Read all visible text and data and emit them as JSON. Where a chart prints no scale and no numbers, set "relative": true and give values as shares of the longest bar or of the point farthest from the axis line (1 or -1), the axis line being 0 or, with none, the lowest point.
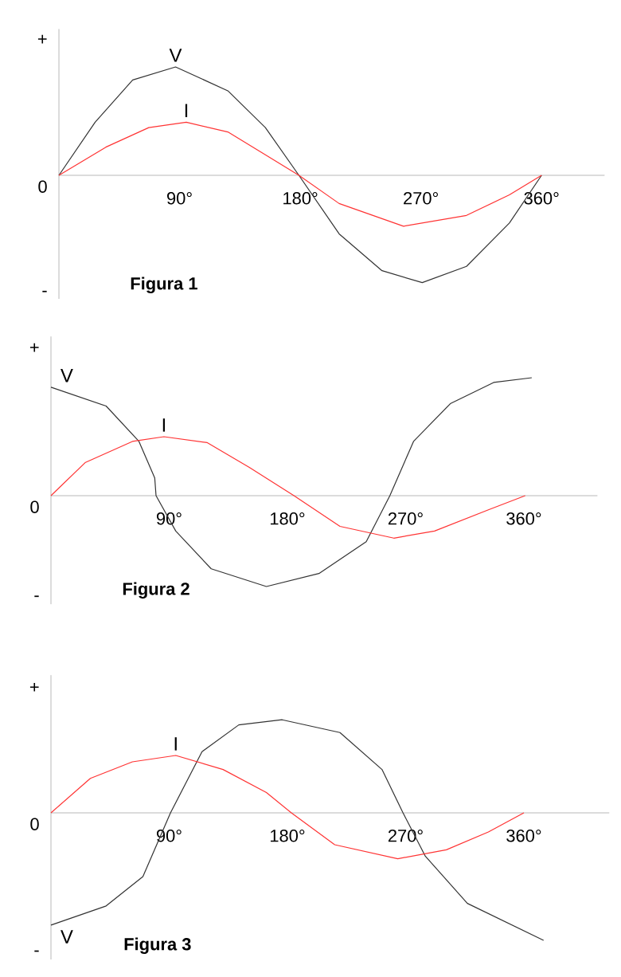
{
  "chart_data": [
    {
      "type": "line",
      "title": "Figura 1",
      "relative": true,
      "xlim": [
        0,
        407
      ],
      "xticks": [
        {
          "value": 90,
          "label": "90°"
        },
        {
          "value": 180,
          "label": "180°"
        },
        {
          "value": 270,
          "label": "270°"
        },
        {
          "value": 360,
          "label": "360°"
        }
      ],
      "annotations": [
        "+",
        "0",
        "-"
      ],
      "marker": "none",
      "series": [
        {
          "name": "V",
          "color": "#333333",
          "x": [
            0,
            27,
            55,
            87,
            126,
            154,
            179,
            209,
            241,
            271,
            304,
            336,
            360
          ],
          "values": [
            0,
            0.49,
            0.88,
            1.0,
            0.78,
            0.44,
            0,
            -0.54,
            -0.88,
            -0.99,
            -0.84,
            -0.44,
            0
          ]
        },
        {
          "name": "I",
          "color": "#ff3333",
          "x": [
            0,
            35,
            67,
            95,
            126,
            154,
            179,
            209,
            257,
            304,
            336,
            360
          ],
          "values": [
            0,
            0.26,
            0.44,
            0.49,
            0.4,
            0.19,
            0,
            -0.26,
            -0.47,
            -0.37,
            -0.18,
            0
          ]
        }
      ]
    },
    {
      "type": "line",
      "title": "Figura 2",
      "relative": true,
      "xlim": [
        0,
        416
      ],
      "xticks": [
        {
          "value": 90,
          "label": "90°"
        },
        {
          "value": 180,
          "label": "180°"
        },
        {
          "value": 270,
          "label": "270°"
        },
        {
          "value": 360,
          "label": "360°"
        }
      ],
      "annotations": [
        "+",
        "0",
        "-"
      ],
      "marker": "none",
      "series": [
        {
          "name": "V",
          "color": "#333333",
          "x": [
            0,
            42,
            67,
            79,
            80,
            95,
            122,
            164,
            204,
            240,
            258,
            276,
            304,
            337,
            366
          ],
          "values": [
            0.92,
            0.76,
            0.46,
            0.15,
            0,
            -0.3,
            -0.62,
            -0.77,
            -0.66,
            -0.39,
            0,
            0.46,
            0.78,
            0.96,
            1.0
          ]
        },
        {
          "name": "I",
          "color": "#ff3333",
          "x": [
            0,
            26,
            62,
            86,
            119,
            151,
            185,
            220,
            261,
            292,
            333,
            361
          ],
          "values": [
            0,
            0.28,
            0.46,
            0.5,
            0.45,
            0.24,
            0,
            -0.26,
            -0.36,
            -0.3,
            -0.12,
            0
          ]
        }
      ]
    },
    {
      "type": "line",
      "title": "Figura 3",
      "relative": true,
      "xlim": [
        0,
        425
      ],
      "xticks": [
        {
          "value": 90,
          "label": "90°"
        },
        {
          "value": 180,
          "label": "180°"
        },
        {
          "value": 270,
          "label": "270°"
        },
        {
          "value": 360,
          "label": "360°"
        }
      ],
      "annotations": [
        "+",
        "0",
        "-"
      ],
      "marker": "none",
      "series": [
        {
          "name": "V",
          "color": "#333333",
          "x": [
            0,
            42,
            70,
            91,
            115,
            143,
            176,
            220,
            252,
            268,
            285,
            317,
            375
          ],
          "values": [
            -0.88,
            -0.73,
            -0.5,
            0,
            0.48,
            0.69,
            0.73,
            0.63,
            0.34,
            0,
            -0.34,
            -0.71,
            -1.0
          ]
        },
        {
          "name": "I",
          "color": "#ff3333",
          "x": [
            0,
            30,
            62,
            95,
            131,
            164,
            183,
            216,
            264,
            301,
            333,
            360
          ],
          "values": [
            0,
            0.27,
            0.4,
            0.45,
            0.34,
            0.16,
            0,
            -0.25,
            -0.36,
            -0.29,
            -0.15,
            0
          ]
        }
      ]
    }
  ]
}
